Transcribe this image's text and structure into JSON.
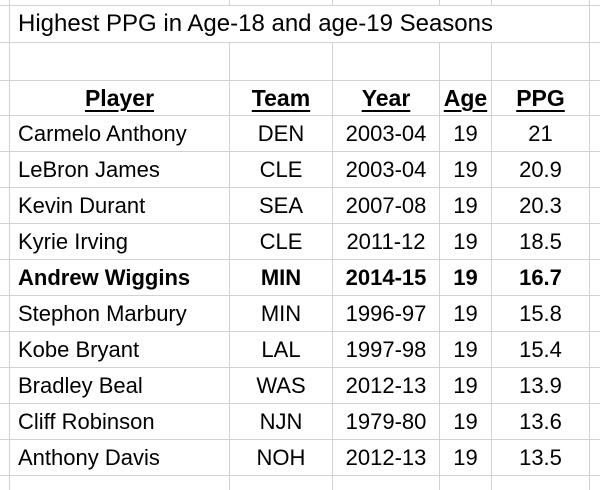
{
  "sheet": {
    "title": "Highest PPG in Age-18 and age-19 Seasons",
    "columns": {
      "player": "Player",
      "team": "Team",
      "year": "Year",
      "age": "Age",
      "ppg": "PPG"
    },
    "rows": [
      {
        "player": "Carmelo Anthony",
        "team": "DEN",
        "year": "2003-04",
        "age": "19",
        "ppg": "21",
        "bold": false
      },
      {
        "player": "LeBron James",
        "team": "CLE",
        "year": "2003-04",
        "age": "19",
        "ppg": "20.9",
        "bold": false
      },
      {
        "player": "Kevin Durant",
        "team": "SEA",
        "year": "2007-08",
        "age": "19",
        "ppg": "20.3",
        "bold": false
      },
      {
        "player": "Kyrie Irving",
        "team": "CLE",
        "year": "2011-12",
        "age": "19",
        "ppg": "18.5",
        "bold": false
      },
      {
        "player": "Andrew Wiggins",
        "team": "MIN",
        "year": "2014-15",
        "age": "19",
        "ppg": "16.7",
        "bold": true
      },
      {
        "player": "Stephon Marbury",
        "team": "MIN",
        "year": "1996-97",
        "age": "19",
        "ppg": "15.8",
        "bold": false
      },
      {
        "player": "Kobe Bryant",
        "team": "LAL",
        "year": "1997-98",
        "age": "19",
        "ppg": "15.4",
        "bold": false
      },
      {
        "player": "Bradley Beal",
        "team": "WAS",
        "year": "2012-13",
        "age": "19",
        "ppg": "13.9",
        "bold": false
      },
      {
        "player": "Cliff Robinson",
        "team": "NJN",
        "year": "1979-80",
        "age": "19",
        "ppg": "13.6",
        "bold": false
      },
      {
        "player": "Anthony Davis",
        "team": "NOH",
        "year": "2012-13",
        "age": "19",
        "ppg": "13.5",
        "bold": false
      }
    ],
    "colors": {
      "gridline": "#d2d2d2",
      "text": "#000000",
      "background": "#ffffff"
    }
  }
}
